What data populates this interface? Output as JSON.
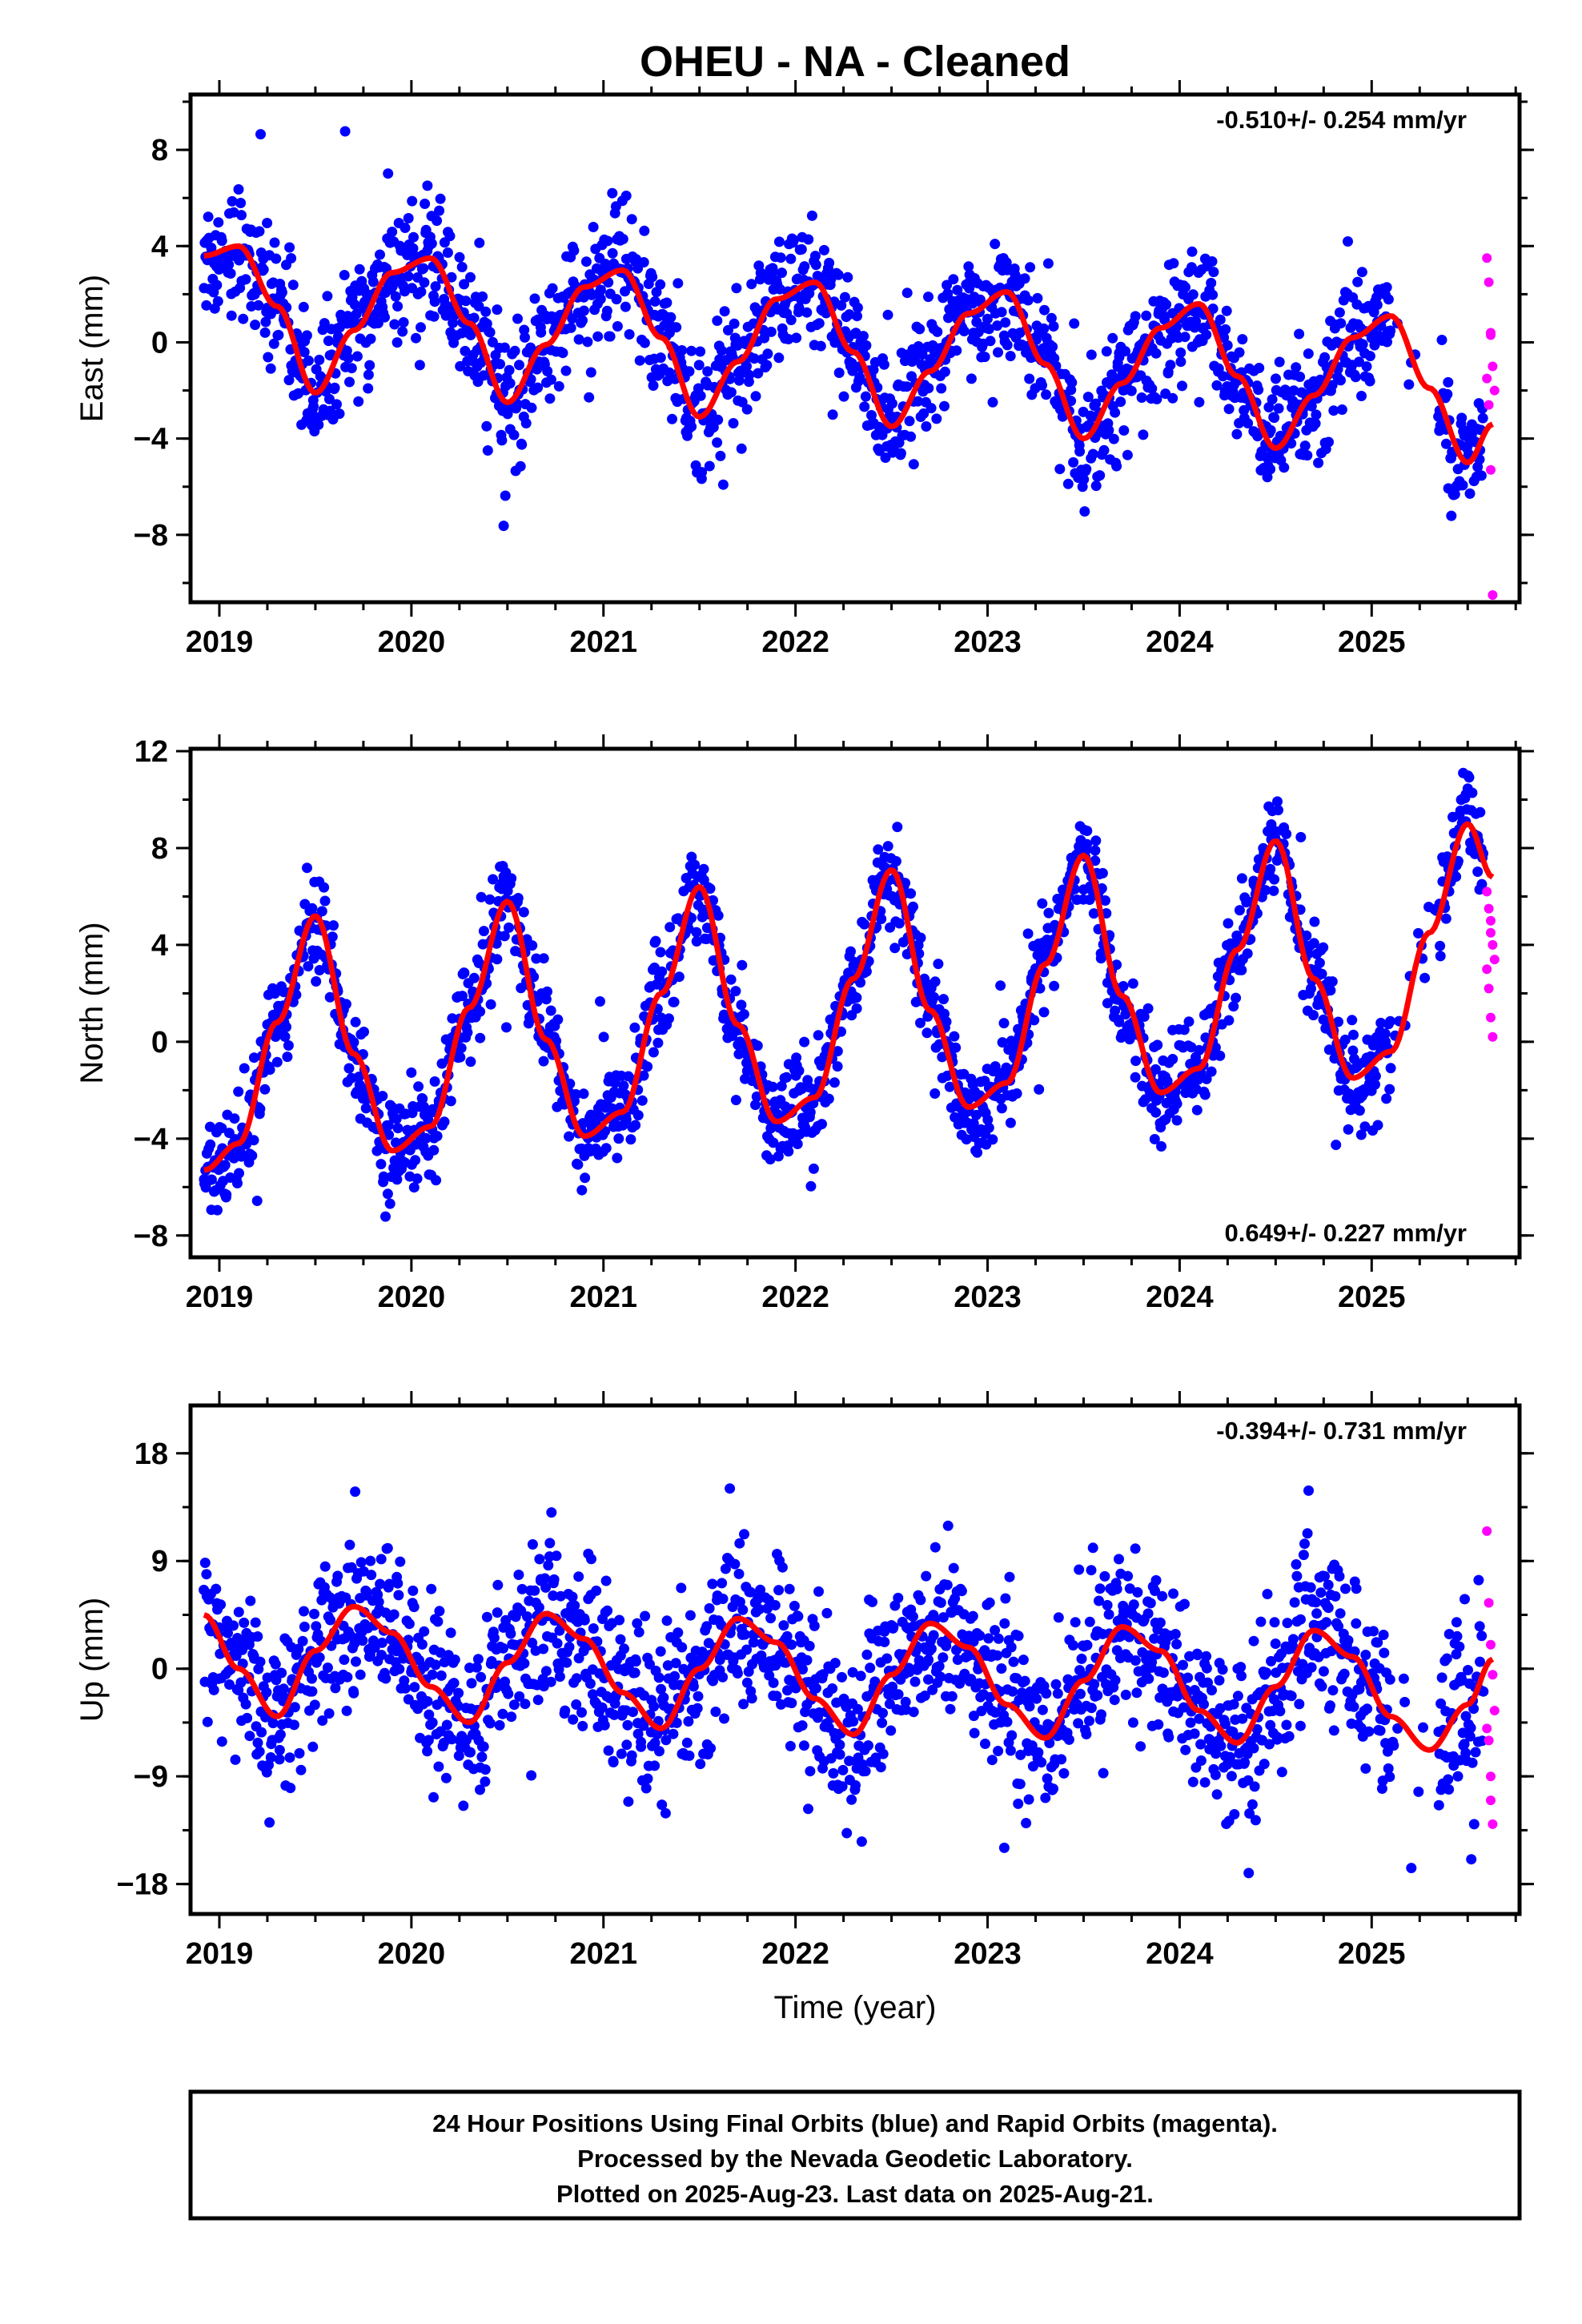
{
  "title": "OHEU  - NA - Cleaned",
  "colors": {
    "final": "#0000ff",
    "rapid": "#ff00ff",
    "model": "#ff0000",
    "frame": "#000000"
  },
  "footer": {
    "line1": "24 Hour Positions Using Final Orbits (blue) and Rapid Orbits (magenta).",
    "line2": "Processed by the Nevada Geodetic Laboratory.",
    "line3": "Plotted on 2025-Aug-23. Last data on 2025-Aug-21."
  },
  "chart_data": [
    {
      "type": "scatter",
      "ylabel": "East (mm)",
      "xlabel": "",
      "rate_label": "-0.510+/- 0.254 mm/yr",
      "rate_position": "top-right",
      "xlim": [
        2018.85,
        2025.77
      ],
      "ylim": [
        -10.8,
        10.3
      ],
      "xticks": [
        2019,
        2020,
        2021,
        2022,
        2023,
        2024,
        2025
      ],
      "yticks": [
        -8,
        -4,
        0,
        4,
        8
      ],
      "grid": false,
      "model": {
        "name": "model fit",
        "x": [
          2018.92,
          2019.1,
          2019.3,
          2019.5,
          2019.7,
          2019.9,
          2020.1,
          2020.3,
          2020.5,
          2020.7,
          2020.9,
          2021.1,
          2021.3,
          2021.5,
          2021.7,
          2021.9,
          2022.1,
          2022.3,
          2022.5,
          2022.7,
          2022.9,
          2023.1,
          2023.3,
          2023.5,
          2023.7,
          2023.9,
          2024.1,
          2024.3,
          2024.5,
          2024.7,
          2024.9,
          2025.1,
          2025.3,
          2025.5,
          2025.63
        ],
        "y": [
          3.6,
          4.0,
          1.5,
          -2.1,
          0.5,
          2.9,
          3.5,
          0.8,
          -2.5,
          -0.1,
          2.3,
          3.0,
          0.2,
          -3.1,
          -0.8,
          1.8,
          2.5,
          -0.4,
          -3.5,
          -1.2,
          1.2,
          2.1,
          -0.9,
          -4.0,
          -1.7,
          0.6,
          1.6,
          -1.4,
          -4.4,
          -2.2,
          0.2,
          1.1,
          -1.9,
          -5.0,
          -3.4
        ]
      },
      "final_orbits": {
        "name": "Final Orbits (blue)",
        "trend_mm_yr": -0.51,
        "scatter_mm": 1.3,
        "x_range": [
          2018.92,
          2025.58
        ]
      },
      "rapid_orbits": {
        "name": "Rapid Orbits (magenta)",
        "x": [
          2025.6,
          2025.61,
          2025.62,
          2025.63,
          2025.64,
          2025.6,
          2025.61,
          2025.62,
          2025.63,
          2025.62
        ],
        "y": [
          3.5,
          2.5,
          0.4,
          -1.0,
          -2.0,
          -1.5,
          -2.6,
          -5.3,
          -10.5,
          0.3
        ]
      }
    },
    {
      "type": "scatter",
      "ylabel": "North (mm)",
      "xlabel": "",
      "rate_label": "0.649+/- 0.227 mm/yr",
      "rate_position": "bottom-right",
      "xlim": [
        2018.85,
        2025.77
      ],
      "ylim": [
        -8.9,
        12.1
      ],
      "xticks": [
        2019,
        2020,
        2021,
        2022,
        2023,
        2024,
        2025
      ],
      "yticks": [
        -8,
        -4,
        0,
        4,
        8,
        12
      ],
      "grid": false,
      "model": {
        "name": "model fit",
        "x": [
          2018.92,
          2019.1,
          2019.3,
          2019.5,
          2019.7,
          2019.9,
          2020.1,
          2020.3,
          2020.5,
          2020.7,
          2020.9,
          2021.1,
          2021.3,
          2021.5,
          2021.7,
          2021.9,
          2022.1,
          2022.3,
          2022.5,
          2022.7,
          2022.9,
          2023.1,
          2023.3,
          2023.5,
          2023.7,
          2023.9,
          2024.1,
          2024.3,
          2024.5,
          2024.7,
          2024.9,
          2025.1,
          2025.3,
          2025.5,
          2025.63
        ],
        "y": [
          -5.3,
          -4.2,
          0.8,
          5.2,
          -0.5,
          -4.5,
          -3.5,
          1.4,
          5.8,
          0.1,
          -3.9,
          -2.9,
          2.0,
          6.4,
          0.7,
          -3.3,
          -2.3,
          2.6,
          7.1,
          1.3,
          -2.7,
          -1.7,
          3.2,
          7.7,
          1.9,
          -2.1,
          -1.1,
          3.8,
          8.3,
          2.6,
          -1.5,
          -0.4,
          4.5,
          9.0,
          6.8
        ]
      },
      "final_orbits": {
        "name": "Final Orbits (blue)",
        "trend_mm_yr": 0.649,
        "scatter_mm": 1.0,
        "x_range": [
          2018.92,
          2025.58
        ]
      },
      "rapid_orbits": {
        "name": "Rapid Orbits (magenta)",
        "x": [
          2025.6,
          2025.61,
          2025.62,
          2025.63,
          2025.64,
          2025.6,
          2025.61,
          2025.62,
          2025.63,
          2025.62
        ],
        "y": [
          6.2,
          5.5,
          4.5,
          4.0,
          3.4,
          3.0,
          2.2,
          1.0,
          0.2,
          5.0
        ]
      }
    },
    {
      "type": "scatter",
      "ylabel": "Up (mm)",
      "xlabel": "Time (year)",
      "rate_label": "-0.394+/- 0.731 mm/yr",
      "rate_position": "top-right",
      "xlim": [
        2018.85,
        2025.77
      ],
      "ylim": [
        -20.5,
        22.0
      ],
      "xticks": [
        2019,
        2020,
        2021,
        2022,
        2023,
        2024,
        2025
      ],
      "yticks": [
        -18,
        -9,
        0,
        9,
        18
      ],
      "grid": false,
      "model": {
        "name": "model fit",
        "x": [
          2018.92,
          2019.1,
          2019.3,
          2019.5,
          2019.7,
          2019.9,
          2020.1,
          2020.3,
          2020.5,
          2020.7,
          2020.9,
          2021.1,
          2021.3,
          2021.5,
          2021.7,
          2021.9,
          2022.1,
          2022.3,
          2022.5,
          2022.7,
          2022.9,
          2023.1,
          2023.3,
          2023.5,
          2023.7,
          2023.9,
          2024.1,
          2024.3,
          2024.5,
          2024.7,
          2024.9,
          2025.1,
          2025.3,
          2025.5,
          2025.63
        ],
        "y": [
          4.5,
          0.0,
          -4.0,
          1.5,
          5.2,
          3.0,
          -1.5,
          -4.5,
          0.5,
          4.6,
          2.5,
          -2.0,
          -5.0,
          0.0,
          4.2,
          2.2,
          -2.5,
          -5.5,
          -0.5,
          3.8,
          1.8,
          -3.0,
          -5.8,
          -1.0,
          3.5,
          1.5,
          -3.5,
          -6.2,
          -1.5,
          3.2,
          1.0,
          -4.0,
          -6.8,
          -3.0,
          0.8
        ]
      },
      "final_orbits": {
        "name": "Final Orbits (blue)",
        "trend_mm_yr": -0.394,
        "scatter_mm": 3.6,
        "x_range": [
          2018.92,
          2025.58
        ]
      },
      "rapid_orbits": {
        "name": "Rapid Orbits (magenta)",
        "x": [
          2025.6,
          2025.61,
          2025.62,
          2025.63,
          2025.64,
          2025.6,
          2025.61,
          2025.62,
          2025.63,
          2025.62
        ],
        "y": [
          11.5,
          5.5,
          2.0,
          -0.5,
          -3.5,
          -5.0,
          -6.0,
          -9.0,
          -13.0,
          -11.0
        ]
      }
    }
  ]
}
